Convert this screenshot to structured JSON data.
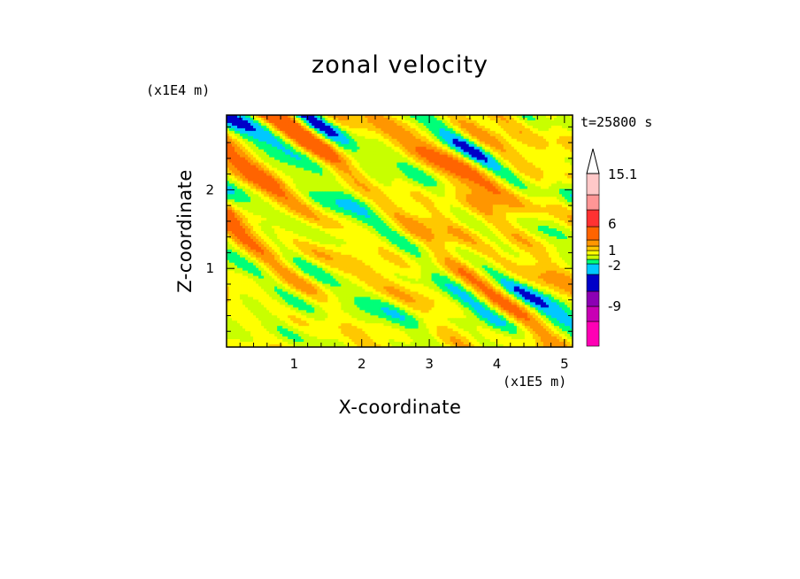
{
  "chart_data": {
    "type": "heatmap",
    "title": "zonal velocity",
    "xlabel": "X-coordinate",
    "ylabel": "Z-coordinate",
    "x_unit_label": "(x1E5 m)",
    "y_unit_label": "(x1E4 m)",
    "time_label": "t=25800 s",
    "xlim": [
      0,
      5.12
    ],
    "ylim": [
      0,
      2.95
    ],
    "x_ticks": [
      "1",
      "2",
      "3",
      "4",
      "5"
    ],
    "y_ticks": [
      "1",
      "2"
    ],
    "colorbar": {
      "labels": [
        {
          "text": "15.1",
          "value": 15.1
        },
        {
          "text": "6",
          "value": 6
        },
        {
          "text": "1",
          "value": 1
        },
        {
          "text": "-2",
          "value": -2
        },
        {
          "text": "-9",
          "value": -9
        }
      ],
      "levels": [
        {
          "value": -15,
          "color": "#ff00b4"
        },
        {
          "value": -12,
          "color": "#c800b4"
        },
        {
          "value": -9,
          "color": "#8c00b4"
        },
        {
          "value": -6,
          "color": "#0000c8"
        },
        {
          "value": -2,
          "color": "#00c8ff"
        },
        {
          "value": -1,
          "color": "#00ff78"
        },
        {
          "value": 0,
          "color": "#c8ff00"
        },
        {
          "value": 1,
          "color": "#ffff00"
        },
        {
          "value": 2,
          "color": "#ffc800"
        },
        {
          "value": 4,
          "color": "#ff9600"
        },
        {
          "value": 6,
          "color": "#ff6400"
        },
        {
          "value": 9,
          "color": "#ff3232"
        },
        {
          "value": 12,
          "color": "#ff9696"
        },
        {
          "value": 15.1,
          "color": "#ffc8c8"
        }
      ]
    },
    "palette_note": "contour fill colors",
    "field_colors": [
      "#0000c8",
      "#00c8ff",
      "#00ff78",
      "#c8ff00",
      "#ffff00",
      "#ffc800",
      "#ff9600",
      "#ff6400"
    ]
  }
}
